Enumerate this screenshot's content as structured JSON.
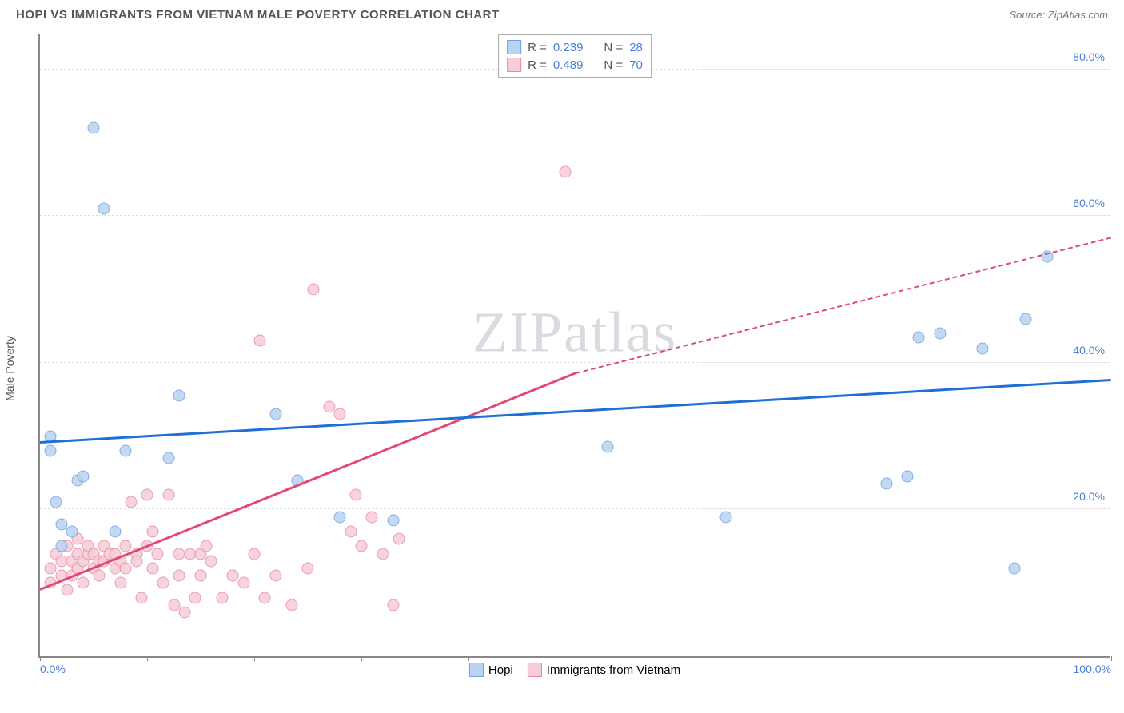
{
  "header": {
    "title": "HOPI VS IMMIGRANTS FROM VIETNAM MALE POVERTY CORRELATION CHART",
    "source": "Source: ZipAtlas.com"
  },
  "watermark": {
    "zip": "ZIP",
    "atlas": "atlas"
  },
  "chart": {
    "type": "scatter",
    "y_axis_label": "Male Poverty",
    "x_range": [
      0,
      100
    ],
    "y_range": [
      0,
      85
    ],
    "y_ticks": [
      {
        "v": 20,
        "label": "20.0%"
      },
      {
        "v": 40,
        "label": "40.0%"
      },
      {
        "v": 60,
        "label": "60.0%"
      },
      {
        "v": 80,
        "label": "80.0%"
      }
    ],
    "x_ticks": [
      {
        "v": 0,
        "label": "0.0%"
      },
      {
        "v": 10,
        "label": ""
      },
      {
        "v": 20,
        "label": ""
      },
      {
        "v": 30,
        "label": ""
      },
      {
        "v": 40,
        "label": ""
      },
      {
        "v": 50,
        "label": ""
      },
      {
        "v": 100,
        "label": "100.0%"
      }
    ],
    "tick_color": "#4a7fd8",
    "grid_color": "#dddddd",
    "axis_color": "#888888",
    "background": "#ffffff",
    "point_radius": 7.5,
    "series": {
      "hopi": {
        "label": "Hopi",
        "fill": "#b9d3f0",
        "stroke": "#6fa3e0",
        "line_color": "#1f6fd6",
        "R": "0.239",
        "N": "28",
        "regression": {
          "x1": 0,
          "y1": 29,
          "x2": 100,
          "y2": 37.5
        },
        "points": [
          [
            1,
            30
          ],
          [
            1,
            28
          ],
          [
            1.5,
            21
          ],
          [
            2,
            18
          ],
          [
            2,
            15
          ],
          [
            3,
            17
          ],
          [
            3.5,
            24
          ],
          [
            4,
            24.5
          ],
          [
            5,
            72
          ],
          [
            6,
            61
          ],
          [
            7,
            17
          ],
          [
            8,
            28
          ],
          [
            12,
            27
          ],
          [
            13,
            35.5
          ],
          [
            22,
            33
          ],
          [
            24,
            24
          ],
          [
            28,
            19
          ],
          [
            33,
            18.5
          ],
          [
            53,
            28.5
          ],
          [
            64,
            19
          ],
          [
            79,
            23.5
          ],
          [
            81,
            24.5
          ],
          [
            82,
            43.5
          ],
          [
            84,
            44
          ],
          [
            88,
            42
          ],
          [
            91,
            12
          ],
          [
            92,
            46
          ],
          [
            94,
            54.5
          ]
        ]
      },
      "vietnam": {
        "label": "Immigrants from Vietnam",
        "fill": "#f6cdd8",
        "stroke": "#e88aa5",
        "line_color": "#e24a76",
        "R": "0.489",
        "N": "70",
        "regression_solid": {
          "x1": 0,
          "y1": 9,
          "x2": 50,
          "y2": 38.5
        },
        "regression_dash": {
          "x1": 50,
          "y1": 38.5,
          "x2": 100,
          "y2": 57
        },
        "points": [
          [
            1,
            10
          ],
          [
            1,
            12
          ],
          [
            1.5,
            14
          ],
          [
            2,
            11
          ],
          [
            2,
            13
          ],
          [
            2.5,
            9
          ],
          [
            2.5,
            15
          ],
          [
            3,
            13
          ],
          [
            3,
            11
          ],
          [
            3.5,
            14
          ],
          [
            3.5,
            12
          ],
          [
            3.5,
            16
          ],
          [
            4,
            13
          ],
          [
            4,
            10
          ],
          [
            4.5,
            14
          ],
          [
            4.5,
            15
          ],
          [
            5,
            12
          ],
          [
            5,
            14
          ],
          [
            5.5,
            13
          ],
          [
            5.5,
            11
          ],
          [
            6,
            15
          ],
          [
            6,
            13
          ],
          [
            6.5,
            14
          ],
          [
            7,
            12
          ],
          [
            7,
            14
          ],
          [
            7.5,
            13
          ],
          [
            7.5,
            10
          ],
          [
            8,
            15
          ],
          [
            8,
            12
          ],
          [
            8.5,
            21
          ],
          [
            9,
            14
          ],
          [
            9,
            13
          ],
          [
            9.5,
            8
          ],
          [
            10,
            15
          ],
          [
            10,
            22
          ],
          [
            10.5,
            12
          ],
          [
            10.5,
            17
          ],
          [
            11,
            14
          ],
          [
            11.5,
            10
          ],
          [
            12,
            22
          ],
          [
            12.5,
            7
          ],
          [
            13,
            14
          ],
          [
            13,
            11
          ],
          [
            13.5,
            6
          ],
          [
            14,
            14
          ],
          [
            14.5,
            8
          ],
          [
            15,
            11
          ],
          [
            15,
            14
          ],
          [
            15.5,
            15
          ],
          [
            16,
            13
          ],
          [
            17,
            8
          ],
          [
            18,
            11
          ],
          [
            19,
            10
          ],
          [
            20,
            14
          ],
          [
            20.5,
            43
          ],
          [
            21,
            8
          ],
          [
            22,
            11
          ],
          [
            23.5,
            7
          ],
          [
            25,
            12
          ],
          [
            25.5,
            50
          ],
          [
            27,
            34
          ],
          [
            28,
            33
          ],
          [
            29,
            17
          ],
          [
            29.5,
            22
          ],
          [
            30,
            15
          ],
          [
            31,
            19
          ],
          [
            32,
            14
          ],
          [
            33,
            7
          ],
          [
            33.5,
            16
          ],
          [
            49,
            66
          ]
        ]
      }
    }
  },
  "legend_top": {
    "r_label": "R =",
    "n_label": "N ="
  }
}
